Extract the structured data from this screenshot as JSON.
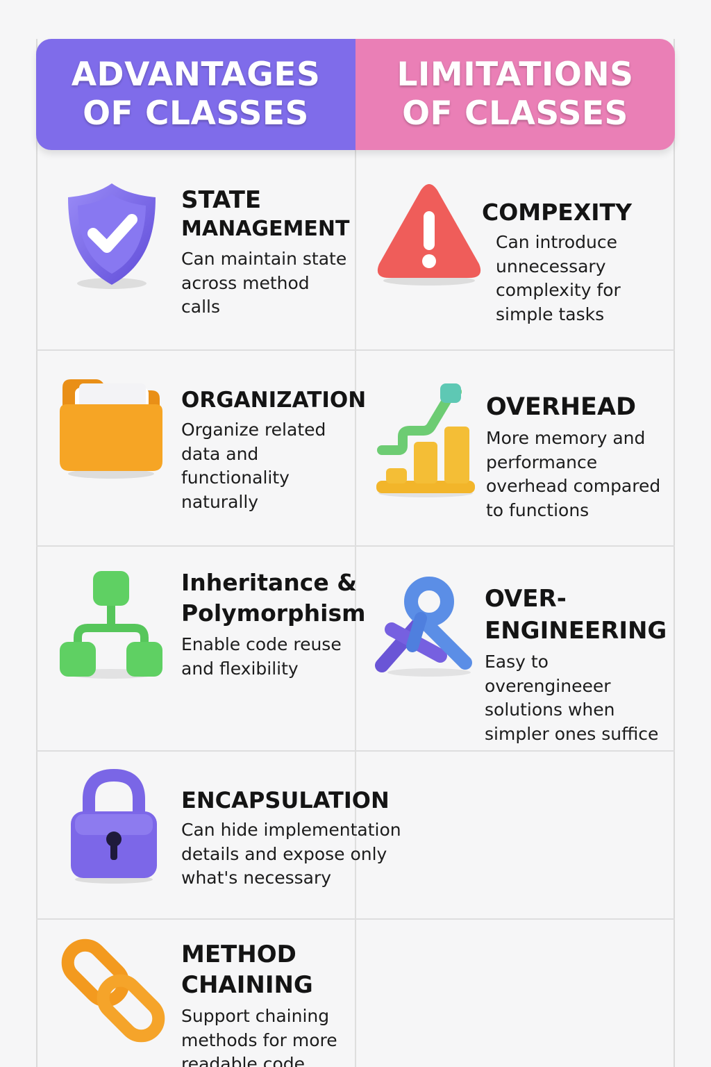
{
  "header": {
    "advantages_title": "ADVANTAGES OF CLASSES",
    "limitations_title": "LIMITATIONS OF CLASSES",
    "advantages_color": "#7f6cea",
    "limitations_color": "#ea7fb6"
  },
  "advantages": [
    {
      "icon": "shield-check-icon",
      "title_line1": "STATE",
      "title_line2": "MANAGEMENT",
      "desc": "Can maintain state across method calls"
    },
    {
      "icon": "folder-icon",
      "title_line1": "ORGANIZATION",
      "desc": "Organize related data and functionality naturally"
    },
    {
      "icon": "hierarchy-icon",
      "title_line1": "Inheritance &",
      "title_line2": "Polymorphism",
      "desc": "Enable code reuse and flexibility"
    },
    {
      "icon": "padlock-icon",
      "title_line1": "ENCAPSULATION",
      "desc": "Can hide implementation details and expose only what's necessary"
    },
    {
      "icon": "chain-link-icon",
      "title_line1": "METHOD",
      "title_line2": "CHAINING",
      "desc": "Support chaining methods for more readable code"
    }
  ],
  "limitations": [
    {
      "icon": "warning-triangle-icon",
      "title_line1": "COMPEXITY",
      "desc": "Can introduce unnecessary complexity for simple tasks"
    },
    {
      "icon": "bar-chart-icon",
      "title_line1": "OVERHEAD",
      "desc": "More memory and performance overhead compared to functions"
    },
    {
      "icon": "tangled-knot-icon",
      "title_line1": "OVER-",
      "title_line2": "ENGINEERING",
      "desc": "Easy to overengineeer solutions when simpler ones suffice"
    }
  ]
}
